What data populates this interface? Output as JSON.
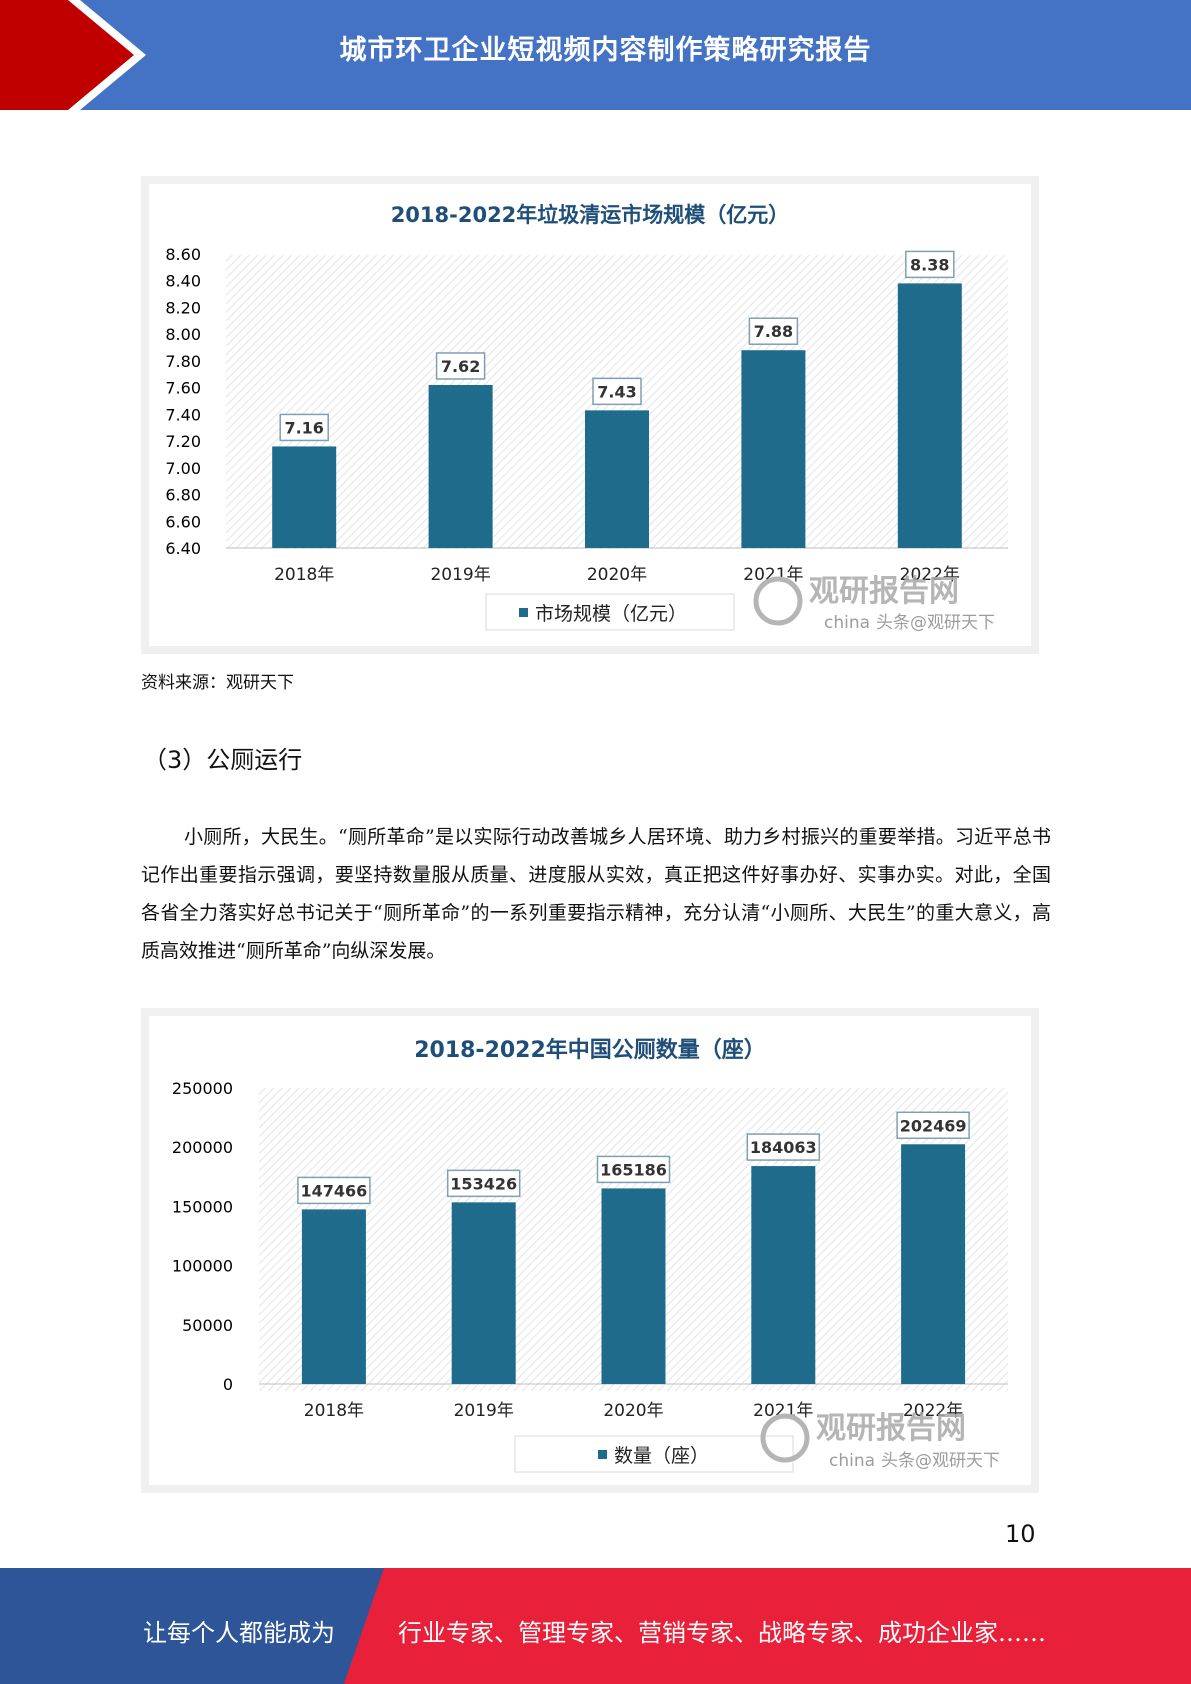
{
  "header": {
    "title": "城市环卫企业短视频内容制作策略研究报告"
  },
  "colors": {
    "header_bg": "#4472c4",
    "header_arrow": "#c00000",
    "bar": "#1f6b8c",
    "footer_left": "#2e5597",
    "footer_right": "#e8203a"
  },
  "chart_data": [
    {
      "type": "bar",
      "title": "2018-2022年垃圾清运市场规模（亿元）",
      "categories": [
        "2018年",
        "2019年",
        "2020年",
        "2021年",
        "2022年"
      ],
      "series": [
        {
          "name": "市场规模（亿元）",
          "values": [
            7.16,
            7.62,
            7.43,
            7.88,
            8.38
          ]
        }
      ],
      "data_labels": [
        "7.16",
        "7.62",
        "7.43",
        "7.88",
        "8.38"
      ],
      "yticks": [
        "6.40",
        "6.60",
        "6.80",
        "7.00",
        "7.20",
        "7.40",
        "7.60",
        "7.80",
        "8.00",
        "8.20",
        "8.40",
        "8.60"
      ],
      "ylim": [
        6.4,
        8.6
      ],
      "legend": "bottom",
      "grid": false
    },
    {
      "type": "bar",
      "title": "2018-2022年中国公厕数量（座）",
      "categories": [
        "2018年",
        "2019年",
        "2020年",
        "2021年",
        "2022年"
      ],
      "series": [
        {
          "name": "数量（座）",
          "values": [
            147466,
            153426,
            165186,
            184063,
            202469
          ]
        }
      ],
      "data_labels": [
        "147466",
        "153426",
        "165186",
        "184063",
        "202469"
      ],
      "yticks": [
        "0",
        "50000",
        "100000",
        "150000",
        "200000",
        "250000"
      ],
      "ylim": [
        0,
        250000
      ],
      "legend": "bottom",
      "grid": false
    }
  ],
  "watermark": {
    "brand": "观研报告网",
    "sub": "china",
    "handle": "头条@观研天下"
  },
  "source_text": "资料来源：观研天下",
  "section_heading": "（3）公厕运行",
  "paragraph": "小厕所，大民生。“厕所革命”是以实际行动改善城乡人居环境、助力乡村振兴的重要举措。习近平总书记作出重要指示强调，要坚持数量服从质量、进度服从实效，真正把这件好事办好、实事办实。对此，全国各省全力落实好总书记关于“厕所革命”的一系列重要指示精神，充分认清“小厕所、大民生”的重大意义，高质高效推进“厕所革命”向纵深发展。",
  "page_number": "10",
  "footer": {
    "left": "让每个人都能成为",
    "right": "行业专家、管理专家、营销专家、战略专家、成功企业家……"
  }
}
